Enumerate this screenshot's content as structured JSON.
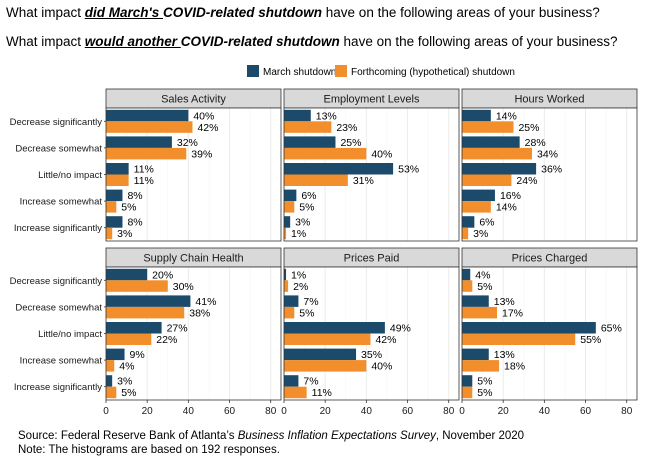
{
  "questions": {
    "q1": {
      "before": "What impact ",
      "emph": "did March's ",
      "emph2": "COVID-related shutdown",
      "after": " have on the following areas of your business?"
    },
    "q2": {
      "before": "What impact ",
      "emph": "would another ",
      "emph2": "COVID-related shutdown",
      "after": " have on the following areas of your business?"
    }
  },
  "source": {
    "prefix": "Source: Federal Reserve Bank of Atlanta’s ",
    "title": "Business Inflation Expectations Survey",
    "suffix": ", November 2020",
    "note": "Note: The histograms are based on 192 responses."
  },
  "colors": {
    "march": "#1b4a6b",
    "forthcoming": "#f28e2b",
    "panel_header": "#d9d9d9",
    "grid": "#ebebeb"
  },
  "chart_data": {
    "type": "bar",
    "orientation": "horizontal",
    "categories": [
      "Decrease significantly",
      "Decrease somewhat",
      "Little/no impact",
      "Increase somewhat",
      "Increase significantly"
    ],
    "legend": [
      "March shutdown",
      "Forthcoming (hypothetical) shutdown"
    ],
    "legend_position": "top",
    "xlim": [
      0,
      85
    ],
    "xticks": [
      0,
      20,
      40,
      60,
      80
    ],
    "panels": [
      {
        "title": "Sales Activity",
        "march": [
          40,
          32,
          11,
          8,
          8
        ],
        "forthcoming": [
          42,
          39,
          11,
          5,
          3
        ]
      },
      {
        "title": "Employment Levels",
        "march": [
          13,
          25,
          53,
          6,
          3
        ],
        "forthcoming": [
          23,
          40,
          31,
          5,
          1
        ]
      },
      {
        "title": "Hours Worked",
        "march": [
          14,
          28,
          36,
          16,
          6
        ],
        "forthcoming": [
          25,
          34,
          24,
          14,
          3
        ]
      },
      {
        "title": "Supply Chain Health",
        "march": [
          20,
          41,
          27,
          9,
          3
        ],
        "forthcoming": [
          30,
          38,
          22,
          4,
          5
        ]
      },
      {
        "title": "Prices Paid",
        "march": [
          1,
          7,
          49,
          35,
          7
        ],
        "forthcoming": [
          2,
          5,
          42,
          40,
          11
        ]
      },
      {
        "title": "Prices Charged",
        "march": [
          4,
          13,
          65,
          13,
          5
        ],
        "forthcoming": [
          5,
          17,
          55,
          18,
          5
        ]
      }
    ],
    "value_suffix": "%"
  }
}
